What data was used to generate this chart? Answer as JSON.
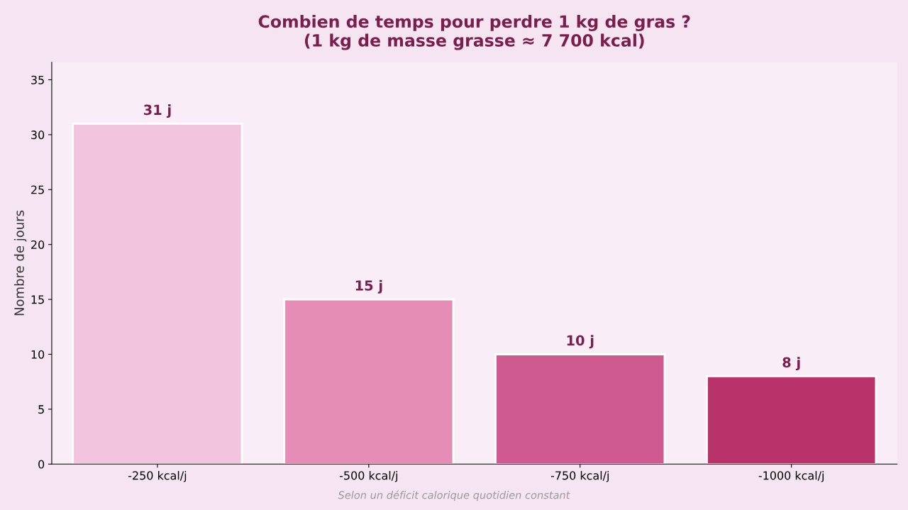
{
  "chart_data": {
    "type": "bar",
    "title": "Combien de temps pour perdre 1 kg de gras ?\n(1 kg de masse grasse ≈ 7 700 kcal)",
    "ylabel": "Nombre de jours",
    "categories": [
      "-250 kcal/j",
      "-500 kcal/j",
      "-750 kcal/j",
      "-1000 kcal/j"
    ],
    "values": [
      31,
      15,
      10,
      8
    ],
    "value_labels": [
      "31 j",
      "15 j",
      "10 j",
      "8 j"
    ],
    "colors": [
      "#f2c4de",
      "#e58db5",
      "#cf5a90",
      "#b8336a"
    ],
    "ylim": [
      0,
      36.6
    ],
    "yticks": [
      0,
      5,
      10,
      15,
      20,
      25,
      30,
      35
    ],
    "grid": false,
    "legend": false,
    "annotations": [
      "Selon un déficit calorique quotidien constant"
    ]
  }
}
